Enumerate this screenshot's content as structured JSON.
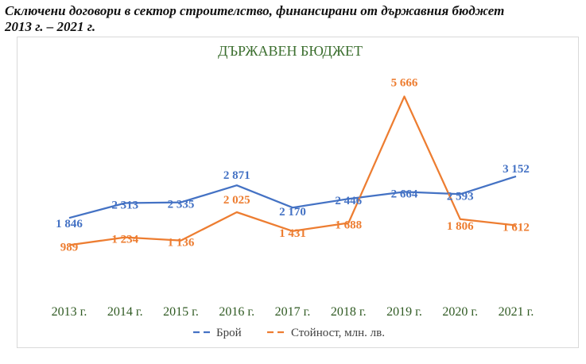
{
  "caption": {
    "line1": "Сключени договори в сектор строителство, финансирани от държавния бюджет",
    "line2": "2013 г. – 2021 г."
  },
  "chart_data": {
    "type": "line",
    "title": "ДЪРЖАВЕН БЮДЖЕТ",
    "categories": [
      "2013 г.",
      "2014 г.",
      "2015 г.",
      "2016 г.",
      "2017 г.",
      "2018 г.",
      "2019 г.",
      "2020 г.",
      "2021 г."
    ],
    "series": [
      {
        "name": "Брой",
        "color": "#4472c4",
        "values": [
          1846,
          2313,
          2335,
          2871,
          2170,
          2446,
          2664,
          2593,
          3152
        ],
        "labels": [
          "1 846",
          "2 313",
          "2 335",
          "2 871",
          "2 170",
          "2 446",
          "2 664",
          "2 593",
          "3 152"
        ]
      },
      {
        "name": "Стойност, млн. лв.",
        "color": "#ed7d31",
        "values": [
          989,
          1234,
          1136,
          2025,
          1431,
          1688,
          5666,
          1806,
          1612
        ],
        "labels": [
          "989",
          "1 234",
          "1 136",
          "2 025",
          "1 431",
          "1 688",
          "5 666",
          "1 806",
          "1 612"
        ]
      }
    ],
    "dash_style": "dashed legend markers",
    "legend_position": "bottom",
    "grid": false
  }
}
